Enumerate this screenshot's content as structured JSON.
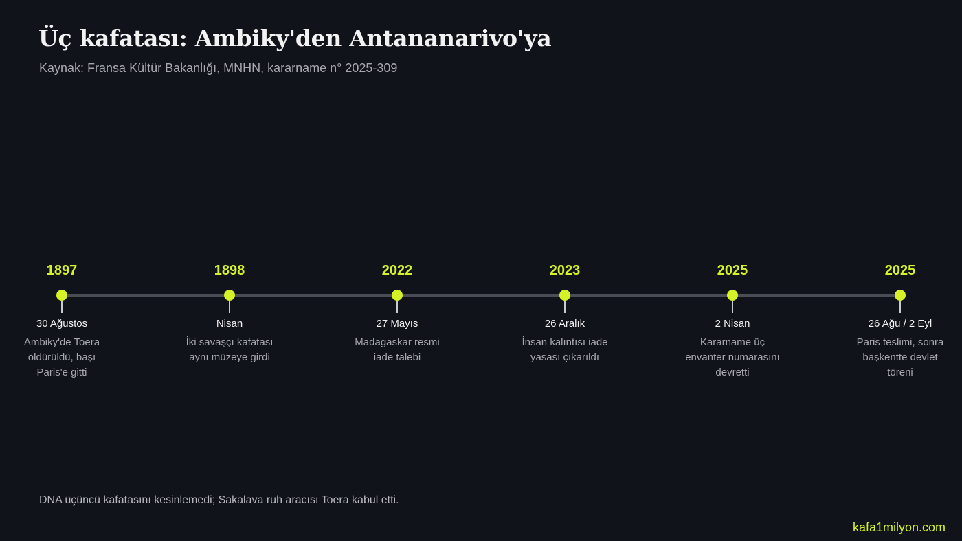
{
  "header": {
    "title": "Üç kafatası: Ambiky'den Antananarivo'ya",
    "subtitle": "Kaynak: Fransa Kültür Bakanlığı, MNHN, kararname n° 2025-309"
  },
  "timeline": {
    "events": [
      {
        "year": "1897",
        "date": "30 Ağustos",
        "desc": "Ambiky'de Toera öldürüldü, başı Paris'e gitti"
      },
      {
        "year": "1898",
        "date": "Nisan",
        "desc": "İki savaşçı kafatası aynı müzeye girdi"
      },
      {
        "year": "2022",
        "date": "27 Mayıs",
        "desc": "Madagaskar resmi iade talebi"
      },
      {
        "year": "2023",
        "date": "26 Aralık",
        "desc": "İnsan kalıntısı iade yasası çıkarıldı"
      },
      {
        "year": "2025",
        "date": "2 Nisan",
        "desc": "Kararname üç envanter numarasını devretti"
      },
      {
        "year": "2025",
        "date": "26 Ağu / 2 Eyl",
        "desc": "Paris teslimi, sonra başkentte devlet töreni"
      }
    ]
  },
  "footer": {
    "note": "DNA üçüncü kafatasını kesinlemedi; Sakalava ruh aracısı Toera kabul etti.",
    "brand": "kafa1milyon.com"
  },
  "colors": {
    "background": "#10131a",
    "accent": "#d4f227",
    "axis": "#4a4d55"
  }
}
